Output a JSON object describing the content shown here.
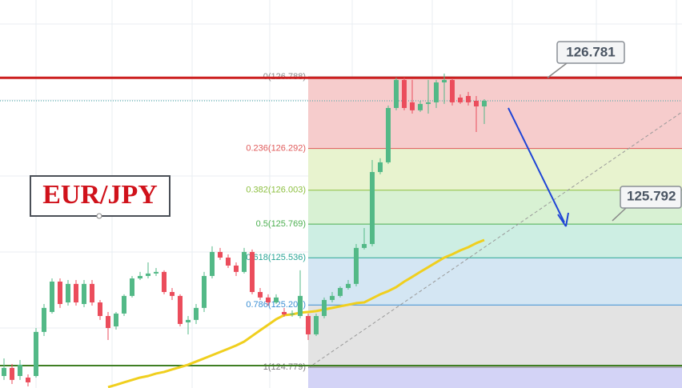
{
  "chart_data": {
    "type": "candlestick",
    "title": "EUR/JPY",
    "ylim": [
      124.635,
      127.319
    ],
    "grid": true,
    "up_color": "#53b987",
    "down_color": "#eb4d5c",
    "open": [
      124.718,
      124.774,
      124.718,
      124.707,
      124.718,
      125.023,
      125.161,
      125.371,
      125.227,
      125.355,
      125.216,
      125.355,
      125.227,
      125.133,
      125.061,
      125.15,
      125.272,
      125.393,
      125.41,
      125.427,
      125.438,
      125.299,
      125.272,
      125.089,
      125.106,
      125.189,
      125.41,
      125.576,
      125.537,
      125.482,
      125.438,
      125.576,
      125.299,
      125.261,
      125.227,
      125.161,
      125.144,
      125.133,
      125.133,
      125.006,
      125.133,
      125.244,
      125.272,
      125.327,
      125.355,
      125.604,
      125.631,
      126.129,
      126.196,
      126.572,
      126.766,
      126.611,
      126.556,
      126.6,
      126.611,
      126.749,
      126.766,
      126.644,
      126.655,
      126.622,
      126.583
    ],
    "high": [
      124.84,
      124.801,
      124.829,
      124.729,
      125.05,
      125.216,
      125.393,
      125.393,
      125.382,
      125.382,
      125.382,
      125.382,
      125.244,
      125.161,
      125.161,
      125.283,
      125.41,
      125.438,
      125.504,
      125.465,
      125.449,
      125.327,
      125.283,
      125.133,
      125.216,
      125.438,
      125.615,
      125.604,
      125.559,
      125.504,
      125.604,
      125.593,
      125.327,
      125.283,
      125.283,
      125.189,
      125.172,
      125.449,
      125.15,
      125.15,
      125.261,
      125.299,
      125.338,
      125.382,
      125.631,
      125.742,
      126.212,
      126.224,
      126.589,
      126.782,
      126.782,
      126.766,
      126.622,
      126.766,
      126.766,
      126.81,
      126.777,
      126.666,
      126.683,
      126.655,
      126.633
    ],
    "low": [
      124.691,
      124.663,
      124.691,
      124.646,
      124.707,
      124.995,
      125.15,
      125.189,
      125.205,
      125.205,
      125.194,
      125.205,
      125.106,
      124.967,
      125.039,
      125.133,
      125.261,
      125.382,
      125.393,
      125.41,
      125.283,
      125.244,
      125.061,
      125.006,
      125.078,
      125.161,
      125.393,
      125.521,
      125.465,
      125.41,
      125.427,
      125.283,
      125.244,
      125.205,
      125.216,
      125.128,
      125.128,
      125.117,
      124.967,
      124.995,
      125.117,
      125.227,
      125.261,
      125.316,
      125.338,
      125.593,
      125.615,
      126.113,
      126.185,
      126.556,
      126.556,
      126.533,
      126.545,
      126.533,
      126.572,
      126.6,
      126.589,
      126.6,
      126.589,
      126.406,
      126.461
    ],
    "close": [
      124.774,
      124.691,
      124.796,
      124.674,
      125.023,
      125.189,
      125.371,
      125.216,
      125.355,
      125.227,
      125.355,
      125.227,
      125.133,
      125.05,
      125.15,
      125.272,
      125.393,
      125.41,
      125.427,
      125.438,
      125.299,
      125.272,
      125.078,
      125.106,
      125.189,
      125.41,
      125.576,
      125.537,
      125.482,
      125.438,
      125.576,
      125.299,
      125.261,
      125.227,
      125.261,
      125.144,
      125.15,
      125.272,
      125.006,
      125.133,
      125.244,
      125.272,
      125.327,
      125.355,
      125.604,
      125.631,
      126.129,
      126.196,
      126.572,
      126.766,
      126.572,
      126.556,
      126.6,
      126.611,
      126.749,
      126.766,
      126.611,
      126.611,
      126.611,
      126.583,
      126.622
    ],
    "moving_average": {
      "color": "#f0cf1e",
      "values": [
        null,
        null,
        null,
        null,
        null,
        null,
        null,
        null,
        null,
        null,
        null,
        null,
        null,
        124.641,
        124.657,
        124.674,
        124.691,
        124.707,
        124.718,
        124.735,
        124.746,
        124.763,
        124.779,
        124.796,
        124.818,
        124.84,
        124.862,
        124.884,
        124.906,
        124.929,
        124.956,
        124.995,
        125.034,
        125.072,
        125.111,
        125.139,
        125.144,
        125.156,
        125.161,
        125.167,
        125.178,
        125.189,
        125.2,
        125.211,
        125.222,
        125.227,
        125.255,
        125.283,
        125.305,
        125.333,
        125.371,
        125.404,
        125.438,
        125.471,
        125.504,
        125.537,
        125.56,
        125.587,
        125.609,
        125.637,
        125.659
      ]
    },
    "fib_levels": [
      {
        "label": "0(126.788)",
        "value": 126.788,
        "color": "#8a8a8a",
        "fill": "#f6cccc"
      },
      {
        "label": "0.236(126.292)",
        "value": 126.292,
        "color": "#e05a5a",
        "fill": "#e8f3cf"
      },
      {
        "label": "0.382(126.003)",
        "value": 126.003,
        "color": "#8cbf3f",
        "fill": "#d8f1d3"
      },
      {
        "label": "0.5(125.769)",
        "value": 125.769,
        "color": "#4caf50",
        "fill": "#cdeee3"
      },
      {
        "label": "0.618(125.536)",
        "value": 125.536,
        "color": "#2aa596",
        "fill": "#d4e6f3"
      },
      {
        "label": "0.786(125.209)",
        "value": 125.209,
        "color": "#3b8fd4",
        "fill": "#e3e3e3"
      },
      {
        "label": "1(124.779)",
        "value": 124.779,
        "color": "#7a7a7a",
        "fill": "#d3d3f6"
      }
    ],
    "lines": [
      {
        "label": "126.781",
        "value": 126.781,
        "color": "#cc1f1f"
      },
      {
        "value": 124.79,
        "color": "#3f7f24"
      },
      {
        "value": 126.622,
        "color": "#3aa3a3"
      }
    ],
    "annotations": [
      {
        "label": "125.792",
        "value": 125.792
      }
    ]
  }
}
